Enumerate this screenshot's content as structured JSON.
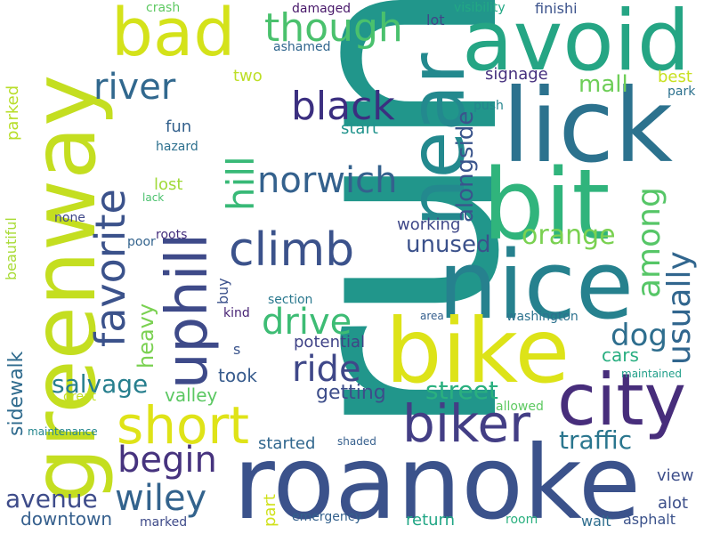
{
  "words": [
    {
      "text": "run",
      "color": "#21968b"
    },
    {
      "text": "greenway",
      "color": "#c4de20"
    },
    {
      "text": "roanoke",
      "color": "#3b528b"
    },
    {
      "text": "bad",
      "color": "#d4e21a"
    },
    {
      "text": "avoid",
      "color": "#25a584"
    },
    {
      "text": "lick",
      "color": "#2c728e"
    },
    {
      "text": "bit",
      "color": "#30b47c"
    },
    {
      "text": "near",
      "color": "#23898e"
    },
    {
      "text": "nice",
      "color": "#26818e"
    },
    {
      "text": "bike",
      "color": "#dde318"
    },
    {
      "text": "uphill",
      "color": "#3e4a89"
    },
    {
      "text": "city",
      "color": "#472d7b"
    },
    {
      "text": "short",
      "color": "#dfe318"
    },
    {
      "text": "biker",
      "color": "#433e85"
    },
    {
      "text": "favorite",
      "color": "#3b528b"
    },
    {
      "text": "climb",
      "color": "#3b528b"
    },
    {
      "text": "norwich",
      "color": "#34618d"
    },
    {
      "text": "black",
      "color": "#3b2f80"
    },
    {
      "text": "though",
      "color": "#4ac16d"
    },
    {
      "text": "river",
      "color": "#31688e"
    },
    {
      "text": "hill",
      "color": "#38b977"
    },
    {
      "text": "among",
      "color": "#56c667"
    },
    {
      "text": "usually",
      "color": "#31668e"
    },
    {
      "text": "drive",
      "color": "#3dbc74"
    },
    {
      "text": "ride",
      "color": "#3f4889"
    },
    {
      "text": "begin",
      "color": "#46337e"
    },
    {
      "text": "wiley",
      "color": "#33638d"
    },
    {
      "text": "dog",
      "color": "#2e6e8e"
    },
    {
      "text": "alongside",
      "color": "#3a548c"
    },
    {
      "text": "orange",
      "color": "#7ad151"
    },
    {
      "text": "unused",
      "color": "#3b518b"
    },
    {
      "text": "street",
      "color": "#2ab07f"
    },
    {
      "text": "traffic",
      "color": "#2a768e"
    },
    {
      "text": "salvage",
      "color": "#277f8e"
    },
    {
      "text": "mall",
      "color": "#6ece58"
    },
    {
      "text": "avenue",
      "color": "#3e4c8a"
    },
    {
      "text": "sidewalk",
      "color": "#2f6b8e"
    },
    {
      "text": "heavy",
      "color": "#7ad151"
    },
    {
      "text": "downtown",
      "color": "#355f8d"
    },
    {
      "text": "getting",
      "color": "#3d4d8a"
    },
    {
      "text": "took",
      "color": "#375b8d"
    },
    {
      "text": "valley",
      "color": "#5cc863"
    },
    {
      "text": "cars",
      "color": "#28ae80"
    },
    {
      "text": "signage",
      "color": "#46307e"
    },
    {
      "text": "parked",
      "color": "#b8de29"
    },
    {
      "text": "fun",
      "color": "#34618d"
    },
    {
      "text": "start",
      "color": "#20938c"
    },
    {
      "text": "lost",
      "color": "#a0da39"
    },
    {
      "text": "working",
      "color": "#3f4889"
    },
    {
      "text": "beautiful",
      "color": "#a8db34"
    },
    {
      "text": "buy",
      "color": "#3b518b"
    },
    {
      "text": "potential",
      "color": "#404387"
    },
    {
      "text": "started",
      "color": "#31678e"
    },
    {
      "text": "part",
      "color": "#d0e11c"
    },
    {
      "text": "return",
      "color": "#21a685"
    },
    {
      "text": "alot",
      "color": "#3c4f8a"
    },
    {
      "text": "view",
      "color": "#3d4e8a"
    },
    {
      "text": "two",
      "color": "#bddf26"
    },
    {
      "text": "best",
      "color": "#c8e020"
    },
    {
      "text": "section",
      "color": "#2a788e"
    },
    {
      "text": "crash",
      "color": "#5ec962"
    },
    {
      "text": "damaged",
      "color": "#48186a"
    },
    {
      "text": "visibility",
      "color": "#22a884"
    },
    {
      "text": "finishi",
      "color": "#3b528b"
    },
    {
      "text": "lot",
      "color": "#404688"
    },
    {
      "text": "ashamed",
      "color": "#31668e"
    },
    {
      "text": "push",
      "color": "#25858e"
    },
    {
      "text": "park",
      "color": "#2c718e"
    },
    {
      "text": "hazard",
      "color": "#2d708e"
    },
    {
      "text": "lack",
      "color": "#4ac16d"
    },
    {
      "text": "none",
      "color": "#3f4788"
    },
    {
      "text": "poor",
      "color": "#33638d"
    },
    {
      "text": "roots",
      "color": "#46307e"
    },
    {
      "text": "kind",
      "color": "#482475"
    },
    {
      "text": "s",
      "color": "#3a548c"
    },
    {
      "text": "washington",
      "color": "#2c728e"
    },
    {
      "text": "area",
      "color": "#355f8d"
    },
    {
      "text": "maintained",
      "color": "#1f9e89"
    },
    {
      "text": "great",
      "color": "#c2df23"
    },
    {
      "text": "allowed",
      "color": "#5ec962"
    },
    {
      "text": "maintenance",
      "color": "#24868e"
    },
    {
      "text": "shaded",
      "color": "#355f8d"
    },
    {
      "text": "emergency",
      "color": "#34618d"
    },
    {
      "text": "marked",
      "color": "#3e4a89"
    },
    {
      "text": "room",
      "color": "#2ab07f"
    },
    {
      "text": "wait",
      "color": "#2e6d8e"
    },
    {
      "text": "asphalt",
      "color": "#3b528b"
    }
  ]
}
